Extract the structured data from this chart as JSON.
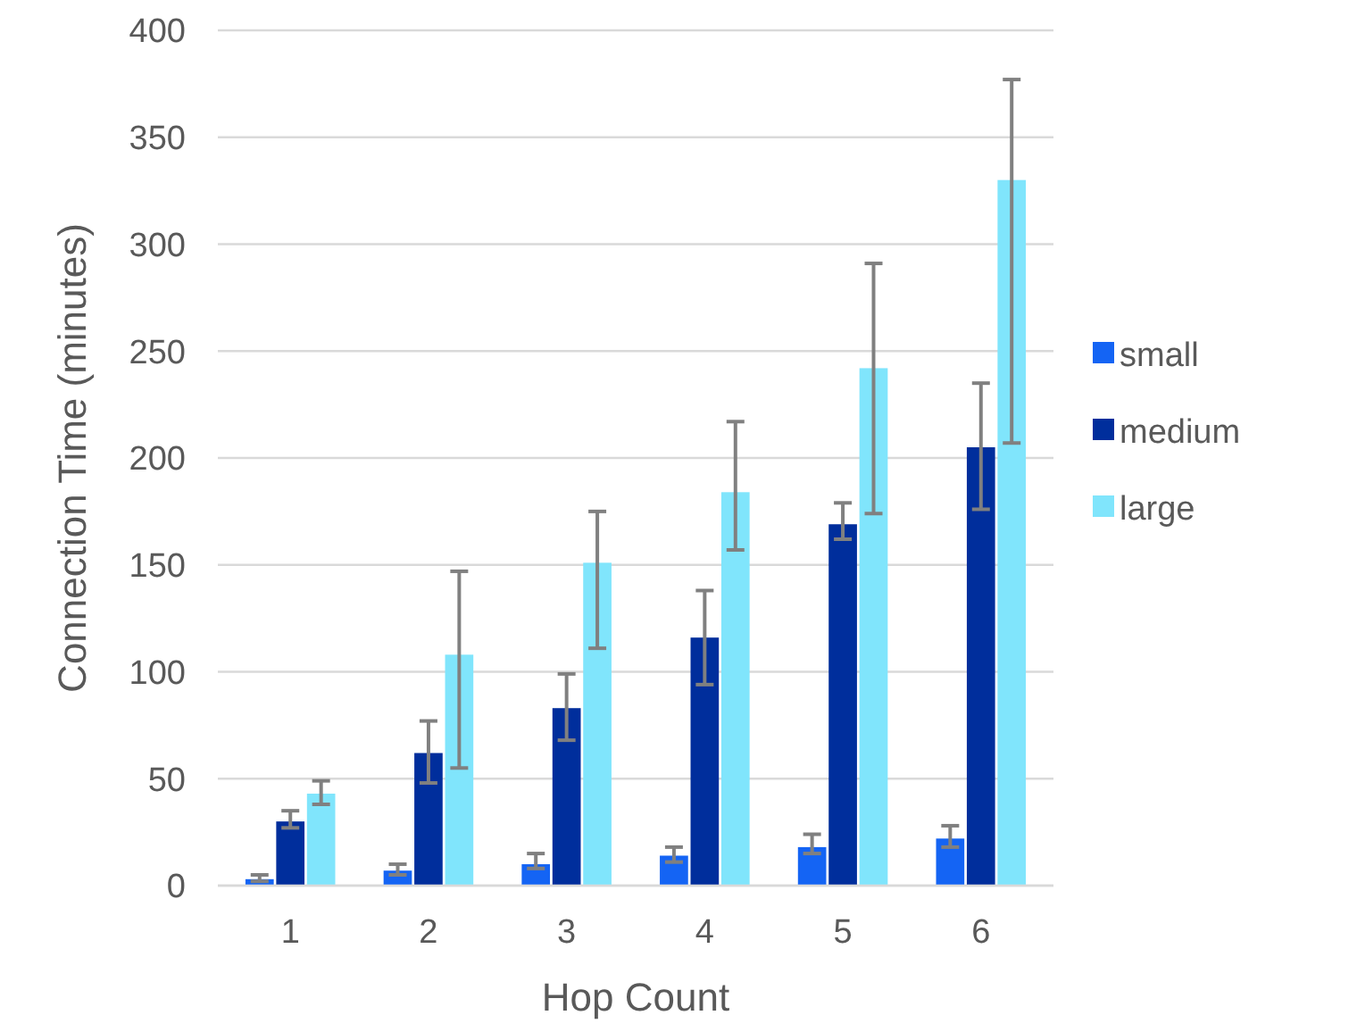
{
  "chart_data": {
    "type": "bar",
    "xlabel": "Hop Count",
    "ylabel": "Connection Time  (minutes)",
    "categories": [
      "1",
      "2",
      "3",
      "4",
      "5",
      "6"
    ],
    "ylim": [
      0,
      400
    ],
    "yticks": [
      0,
      50,
      100,
      150,
      200,
      250,
      300,
      350,
      400
    ],
    "grid": "y",
    "legend": "right",
    "series": [
      {
        "name": "small",
        "color": "#1464f4",
        "values": [
          3,
          7,
          10,
          14,
          18,
          22
        ],
        "errors": [
          [
            2,
            5
          ],
          [
            5,
            10
          ],
          [
            8,
            15
          ],
          [
            11,
            18
          ],
          [
            15,
            24
          ],
          [
            18,
            28
          ]
        ]
      },
      {
        "name": "medium",
        "color": "#002e9c",
        "values": [
          30,
          62,
          83,
          116,
          169,
          205
        ],
        "errors": [
          [
            27,
            35
          ],
          [
            48,
            77
          ],
          [
            68,
            99
          ],
          [
            94,
            138
          ],
          [
            162,
            179
          ],
          [
            176,
            235
          ]
        ]
      },
      {
        "name": "large",
        "color": "#80e5fc",
        "values": [
          43,
          108,
          151,
          184,
          242,
          330
        ],
        "errors": [
          [
            38,
            49
          ],
          [
            55,
            147
          ],
          [
            111,
            175
          ],
          [
            157,
            217
          ],
          [
            174,
            291
          ],
          [
            207,
            377
          ]
        ]
      }
    ]
  }
}
